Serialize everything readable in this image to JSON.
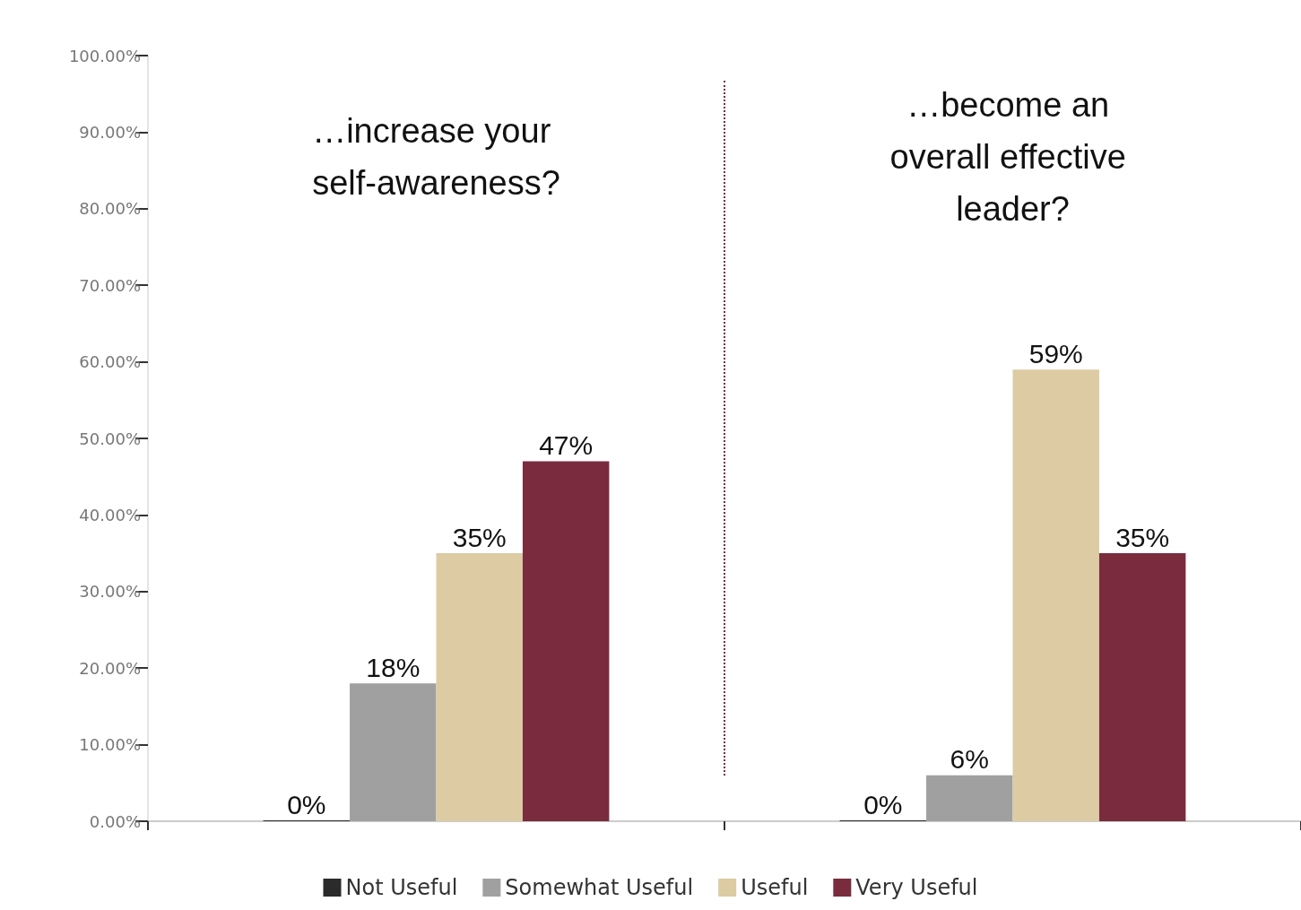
{
  "chart_data": {
    "type": "bar",
    "categories": [
      null,
      null
    ],
    "annotations": [
      "…increase your self-awareness?",
      "…become an overall effective leader?"
    ],
    "series": [
      {
        "name": "Not Useful",
        "color": "#2b2b2b",
        "values": [
          0,
          0
        ],
        "value_labels": [
          "0%",
          "0%"
        ]
      },
      {
        "name": "Somewhat Useful",
        "color": "#a0a0a0",
        "values": [
          18,
          6
        ],
        "value_labels": [
          "18%",
          "6%"
        ]
      },
      {
        "name": "Useful",
        "color": "#dccba3",
        "values": [
          35,
          59
        ],
        "value_labels": [
          "35%",
          "59%"
        ]
      },
      {
        "name": "Very Useful",
        "color": "#7a2c3e",
        "values": [
          47,
          35
        ],
        "value_labels": [
          "47%",
          "35%"
        ]
      }
    ],
    "ylim": [
      0,
      100
    ],
    "yticks": [
      {
        "value": 0,
        "label": "0.00%"
      },
      {
        "value": 10,
        "label": "10.00%"
      },
      {
        "value": 20,
        "label": "20.00%"
      },
      {
        "value": 30,
        "label": "30.00%"
      },
      {
        "value": 40,
        "label": "40.00%"
      },
      {
        "value": 50,
        "label": "50.00%"
      },
      {
        "value": 60,
        "label": "60.00%"
      },
      {
        "value": 70,
        "label": "70.00%"
      },
      {
        "value": 80,
        "label": "80.00%"
      },
      {
        "value": 90,
        "label": "90.00%"
      },
      {
        "value": 100,
        "label": "100.00%"
      }
    ],
    "grid": false,
    "legend": "bottom"
  }
}
